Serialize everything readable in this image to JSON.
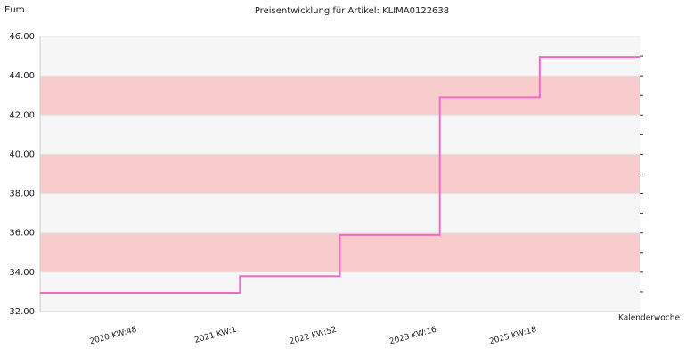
{
  "chart_data": {
    "type": "step",
    "title": "Preisentwicklung für Artikel: KLIMA0122638",
    "ylabel": "Euro",
    "xlabel": "Kalenderwoche",
    "categories": [
      "2020 KW:48",
      "2021 KW:1",
      "2022 KW:52",
      "2023 KW:16",
      "2025 KW:18"
    ],
    "values": [
      32.95,
      33.8,
      35.9,
      42.9,
      44.95
    ],
    "color": "#f06cc4",
    "band_colors": [
      "#f6f6f6",
      "#f8cccc"
    ],
    "ylim": [
      32,
      46
    ],
    "yticks": [
      {
        "value": 32,
        "label": "32.00"
      },
      {
        "value": 34,
        "label": "34.00"
      },
      {
        "value": 36,
        "label": "36.00"
      },
      {
        "value": 38,
        "label": "38.00"
      },
      {
        "value": 40,
        "label": "40.00"
      },
      {
        "value": 42,
        "label": "42.00"
      },
      {
        "value": 44,
        "label": "44.00"
      },
      {
        "value": 46,
        "label": "46.00"
      }
    ],
    "minor_yticks": [
      33,
      34,
      35,
      36,
      37,
      38,
      39,
      40,
      41,
      42,
      43,
      44,
      45
    ]
  }
}
